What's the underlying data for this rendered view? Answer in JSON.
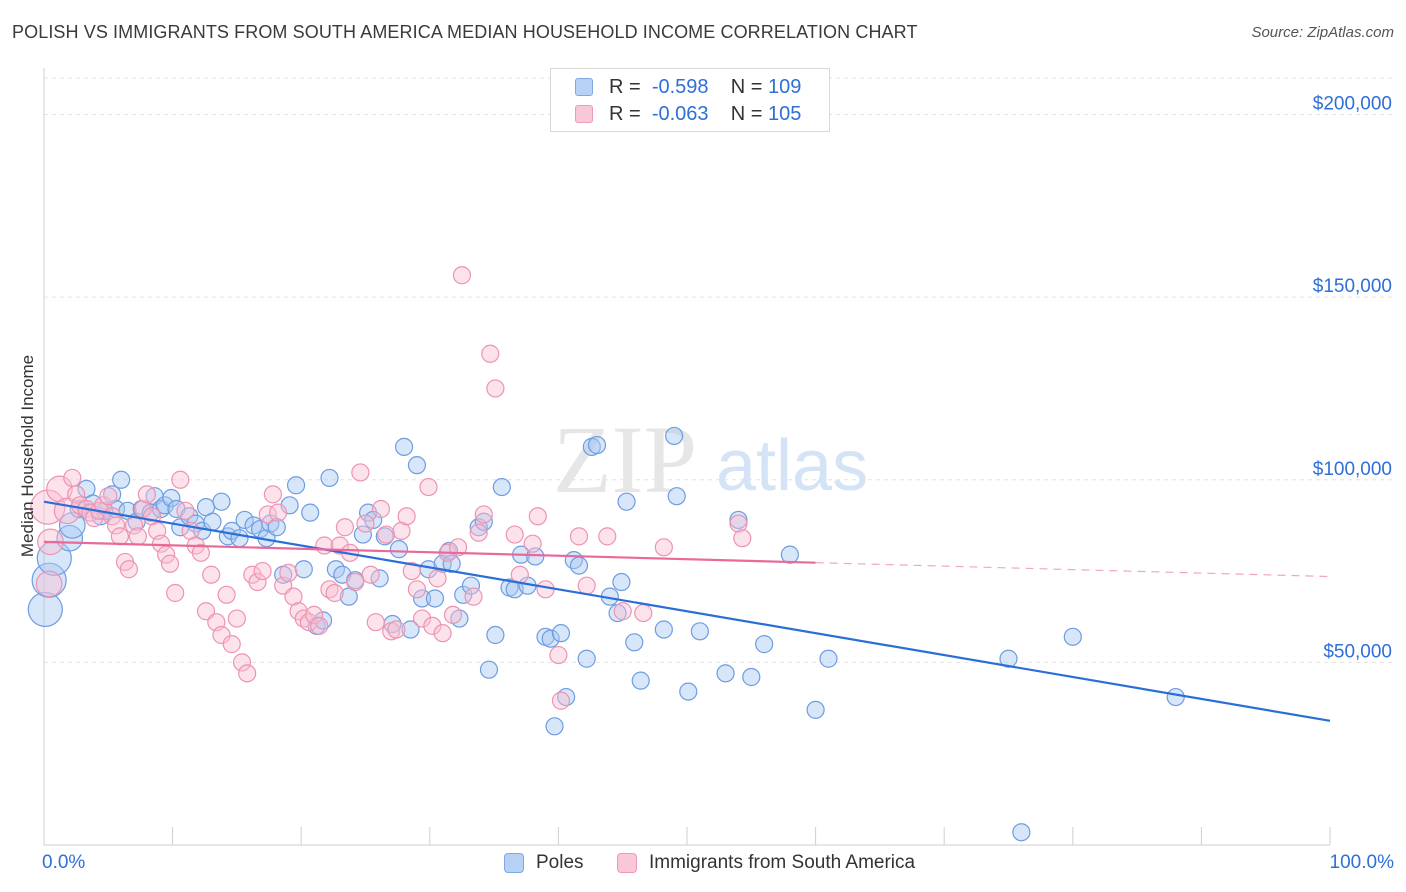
{
  "title": "POLISH VS IMMIGRANTS FROM SOUTH AMERICA MEDIAN HOUSEHOLD INCOME CORRELATION CHART",
  "source": "Source: ZipAtlas.com",
  "watermark": {
    "zip": "ZIP",
    "atlas": "atlas"
  },
  "legend": {
    "rows": [
      {
        "r_label": "R =",
        "r_value": "-0.598",
        "n_label": "N =",
        "n_value": "109"
      },
      {
        "r_label": "R =",
        "r_value": "-0.063",
        "n_label": "N =",
        "n_value": "105"
      }
    ]
  },
  "colors": {
    "blue_fill": "#a9c8f2",
    "blue_stroke": "#6d9de0",
    "blue_line": "#2a6fd6",
    "pink_fill": "#f8bfd2",
    "pink_stroke": "#ee93b2",
    "pink_line": "#e8699a",
    "grid": "#e3e3e3",
    "axis_text": "#2e6fd8"
  },
  "chart_data": {
    "type": "scatter",
    "title": "POLISH VS IMMIGRANTS FROM SOUTH AMERICA MEDIAN HOUSEHOLD INCOME CORRELATION CHART",
    "xlabel_min": "0.0%",
    "xlabel_max": "100.0%",
    "ylabel": "Median Household Income",
    "xlim": [
      0,
      100
    ],
    "ylim": [
      0,
      210000
    ],
    "yticks": [
      {
        "value": 50000,
        "label": "$50,000"
      },
      {
        "value": 100000,
        "label": "$100,000"
      },
      {
        "value": 150000,
        "label": "$150,000"
      },
      {
        "value": 200000,
        "label": "$200,000"
      }
    ],
    "series": [
      {
        "name": "Poles",
        "trend": {
          "x0": 0,
          "y0": 94000,
          "x1": 100,
          "y1": 34000,
          "solid_until": 100
        },
        "points": [
          [
            0.1,
            64500,
            2
          ],
          [
            0.4,
            72500,
            2
          ],
          [
            0.8,
            78500,
            2
          ],
          [
            2.0,
            84000,
            1.5
          ],
          [
            2.2,
            87500,
            1.5
          ],
          [
            2.7,
            92000,
            1
          ],
          [
            3.3,
            97500,
            1
          ],
          [
            3.8,
            93500,
            1
          ],
          [
            4.4,
            90000,
            1
          ],
          [
            4.7,
            91500,
            1
          ],
          [
            5.3,
            96000,
            1
          ],
          [
            5.6,
            92000,
            1
          ],
          [
            6.0,
            100000,
            1
          ],
          [
            6.5,
            91500,
            1
          ],
          [
            7.2,
            88500,
            1
          ],
          [
            7.6,
            92000,
            1
          ],
          [
            8.3,
            91000,
            1
          ],
          [
            8.6,
            95500,
            1
          ],
          [
            9.1,
            92000,
            1
          ],
          [
            9.4,
            93000,
            1
          ],
          [
            9.9,
            95000,
            1
          ],
          [
            10.3,
            92000,
            1
          ],
          [
            10.6,
            87000,
            1
          ],
          [
            11.3,
            90000,
            1
          ],
          [
            11.8,
            88000,
            1
          ],
          [
            12.3,
            86000,
            1
          ],
          [
            12.6,
            92500,
            1
          ],
          [
            13.1,
            88500,
            1
          ],
          [
            13.8,
            94000,
            1
          ],
          [
            14.3,
            84500,
            1
          ],
          [
            14.6,
            86000,
            1
          ],
          [
            15.2,
            84000,
            1
          ],
          [
            15.6,
            89000,
            1
          ],
          [
            16.3,
            87500,
            1
          ],
          [
            16.8,
            86500,
            1
          ],
          [
            17.3,
            84000,
            1
          ],
          [
            17.6,
            88000,
            1
          ],
          [
            18.1,
            87000,
            1
          ],
          [
            18.6,
            74000,
            1
          ],
          [
            19.1,
            93000,
            1
          ],
          [
            19.6,
            98500,
            1
          ],
          [
            20.2,
            75500,
            1
          ],
          [
            20.7,
            91000,
            1
          ],
          [
            21.2,
            60000,
            1
          ],
          [
            21.7,
            61500,
            1
          ],
          [
            22.2,
            100500,
            1
          ],
          [
            22.7,
            75500,
            1
          ],
          [
            23.2,
            74000,
            1
          ],
          [
            23.7,
            68000,
            1
          ],
          [
            24.2,
            72500,
            1
          ],
          [
            24.8,
            85000,
            1
          ],
          [
            25.2,
            91000,
            1
          ],
          [
            25.6,
            89000,
            1
          ],
          [
            26.1,
            73000,
            1
          ],
          [
            26.5,
            84500,
            1
          ],
          [
            27.1,
            60500,
            1
          ],
          [
            27.6,
            81000,
            1
          ],
          [
            28.0,
            109000,
            1
          ],
          [
            28.5,
            59000,
            1
          ],
          [
            29.0,
            104000,
            1
          ],
          [
            29.4,
            67500,
            1
          ],
          [
            29.9,
            75500,
            1
          ],
          [
            30.4,
            67500,
            1
          ],
          [
            31.0,
            77000,
            1
          ],
          [
            31.5,
            80500,
            1
          ],
          [
            31.7,
            77000,
            1
          ],
          [
            32.3,
            62000,
            1
          ],
          [
            32.6,
            68500,
            1
          ],
          [
            33.2,
            71000,
            1
          ],
          [
            33.8,
            87000,
            1
          ],
          [
            34.2,
            88500,
            1
          ],
          [
            34.6,
            48000,
            1
          ],
          [
            35.1,
            57500,
            1
          ],
          [
            35.6,
            98000,
            1
          ],
          [
            36.2,
            70500,
            1
          ],
          [
            36.6,
            70000,
            1
          ],
          [
            37.1,
            79500,
            1
          ],
          [
            37.6,
            71000,
            1
          ],
          [
            38.2,
            79000,
            1
          ],
          [
            39.0,
            57000,
            1
          ],
          [
            39.4,
            56500,
            1
          ],
          [
            39.7,
            32500,
            1
          ],
          [
            40.2,
            58000,
            1
          ],
          [
            40.6,
            40500,
            1
          ],
          [
            41.2,
            78000,
            1
          ],
          [
            41.6,
            76500,
            1
          ],
          [
            42.2,
            51000,
            1
          ],
          [
            42.6,
            109000,
            1
          ],
          [
            43.0,
            109500,
            1
          ],
          [
            44.0,
            68000,
            1
          ],
          [
            44.6,
            63500,
            1
          ],
          [
            44.9,
            72000,
            1
          ],
          [
            45.3,
            94000,
            1
          ],
          [
            45.9,
            55500,
            1
          ],
          [
            46.4,
            45000,
            1
          ],
          [
            48.2,
            59000,
            1
          ],
          [
            49.0,
            112000,
            1
          ],
          [
            49.2,
            95500,
            1
          ],
          [
            50.1,
            42000,
            1
          ],
          [
            51.0,
            58500,
            1
          ],
          [
            53.0,
            47000,
            1
          ],
          [
            54.0,
            89000,
            1
          ],
          [
            55.0,
            46000,
            1
          ],
          [
            56.0,
            55000,
            1
          ],
          [
            58.0,
            79500,
            1
          ],
          [
            60.0,
            37000,
            1
          ],
          [
            61.0,
            51000,
            1
          ],
          [
            75.0,
            51000,
            1
          ],
          [
            76.0,
            3500,
            1
          ],
          [
            80.0,
            57000,
            1
          ],
          [
            88.0,
            40500,
            1
          ]
        ]
      },
      {
        "name": "Immigrants from South America",
        "trend": {
          "x0": 0,
          "y0": 83000,
          "x1": 100,
          "y1": 73500,
          "solid_until": 60
        },
        "points": [
          [
            0.3,
            92500,
            2
          ],
          [
            0.4,
            71500,
            1.5
          ],
          [
            0.5,
            83000,
            1.5
          ],
          [
            1.2,
            97500,
            1.5
          ],
          [
            1.8,
            91500,
            1.5
          ],
          [
            2.2,
            100500,
            1
          ],
          [
            2.5,
            96000,
            1
          ],
          [
            2.8,
            93000,
            1
          ],
          [
            3.3,
            92000,
            1
          ],
          [
            3.6,
            91000,
            1
          ],
          [
            3.9,
            89500,
            1
          ],
          [
            4.3,
            91500,
            1
          ],
          [
            4.6,
            93000,
            1
          ],
          [
            5.0,
            95500,
            1
          ],
          [
            5.3,
            90000,
            1
          ],
          [
            5.6,
            87500,
            1
          ],
          [
            5.9,
            84500,
            1
          ],
          [
            6.3,
            77500,
            1
          ],
          [
            6.6,
            75500,
            1
          ],
          [
            7.0,
            87500,
            1
          ],
          [
            7.3,
            84500,
            1
          ],
          [
            7.7,
            92000,
            1
          ],
          [
            8.0,
            96000,
            1
          ],
          [
            8.4,
            90000,
            1
          ],
          [
            8.8,
            86000,
            1
          ],
          [
            9.1,
            82500,
            1
          ],
          [
            9.5,
            79500,
            1
          ],
          [
            9.8,
            77000,
            1
          ],
          [
            10.2,
            69000,
            1
          ],
          [
            10.6,
            100000,
            1
          ],
          [
            11.0,
            91500,
            1
          ],
          [
            11.4,
            86000,
            1
          ],
          [
            11.8,
            82000,
            1
          ],
          [
            12.2,
            80000,
            1
          ],
          [
            12.6,
            64000,
            1
          ],
          [
            13.0,
            74000,
            1
          ],
          [
            13.4,
            61000,
            1
          ],
          [
            13.8,
            57500,
            1
          ],
          [
            14.2,
            68500,
            1
          ],
          [
            14.6,
            55000,
            1
          ],
          [
            15.0,
            62000,
            1
          ],
          [
            15.4,
            50000,
            1
          ],
          [
            15.8,
            47000,
            1
          ],
          [
            16.2,
            74000,
            1
          ],
          [
            16.6,
            72000,
            1
          ],
          [
            17.0,
            75000,
            1
          ],
          [
            17.4,
            90500,
            1
          ],
          [
            17.8,
            96000,
            1
          ],
          [
            18.2,
            91000,
            1
          ],
          [
            18.6,
            71000,
            1
          ],
          [
            19.0,
            74500,
            1
          ],
          [
            19.4,
            68000,
            1
          ],
          [
            19.8,
            64000,
            1
          ],
          [
            20.2,
            62000,
            1
          ],
          [
            20.6,
            61000,
            1
          ],
          [
            21.0,
            63000,
            1
          ],
          [
            21.4,
            60000,
            1
          ],
          [
            21.8,
            82000,
            1
          ],
          [
            22.2,
            70000,
            1
          ],
          [
            22.6,
            69000,
            1
          ],
          [
            23.0,
            82000,
            1
          ],
          [
            23.4,
            87000,
            1
          ],
          [
            23.8,
            80000,
            1
          ],
          [
            24.2,
            72000,
            1
          ],
          [
            24.6,
            102000,
            1
          ],
          [
            25.0,
            88000,
            1
          ],
          [
            25.4,
            74000,
            1
          ],
          [
            25.8,
            61000,
            1
          ],
          [
            26.2,
            92000,
            1
          ],
          [
            26.6,
            85000,
            1
          ],
          [
            27.0,
            58500,
            1
          ],
          [
            27.4,
            59000,
            1
          ],
          [
            27.8,
            86000,
            1
          ],
          [
            28.2,
            90000,
            1
          ],
          [
            28.6,
            75000,
            1
          ],
          [
            29.0,
            70000,
            1
          ],
          [
            29.4,
            62000,
            1
          ],
          [
            29.9,
            98000,
            1
          ],
          [
            30.2,
            60000,
            1
          ],
          [
            30.6,
            73000,
            1
          ],
          [
            31.0,
            58000,
            1
          ],
          [
            31.4,
            80000,
            1
          ],
          [
            31.8,
            63000,
            1
          ],
          [
            32.2,
            81500,
            1
          ],
          [
            32.5,
            156000,
            1
          ],
          [
            33.4,
            68000,
            1
          ],
          [
            33.8,
            85500,
            1
          ],
          [
            34.2,
            90500,
            1
          ],
          [
            34.7,
            134500,
            1
          ],
          [
            35.1,
            125000,
            1
          ],
          [
            36.6,
            85000,
            1
          ],
          [
            37.0,
            74000,
            1
          ],
          [
            38.0,
            82500,
            1
          ],
          [
            38.4,
            90000,
            1
          ],
          [
            39.0,
            70000,
            1
          ],
          [
            40.0,
            52000,
            1
          ],
          [
            40.2,
            39500,
            1
          ],
          [
            41.6,
            84500,
            1
          ],
          [
            42.2,
            71000,
            1
          ],
          [
            43.8,
            84500,
            1
          ],
          [
            45.0,
            64000,
            1
          ],
          [
            46.6,
            63500,
            1
          ],
          [
            48.2,
            81500,
            1
          ],
          [
            54.0,
            88000,
            1
          ],
          [
            54.3,
            84000,
            1
          ]
        ]
      }
    ]
  },
  "bottom_legend": {
    "series1": "Poles",
    "series2": "Immigrants from South America"
  }
}
